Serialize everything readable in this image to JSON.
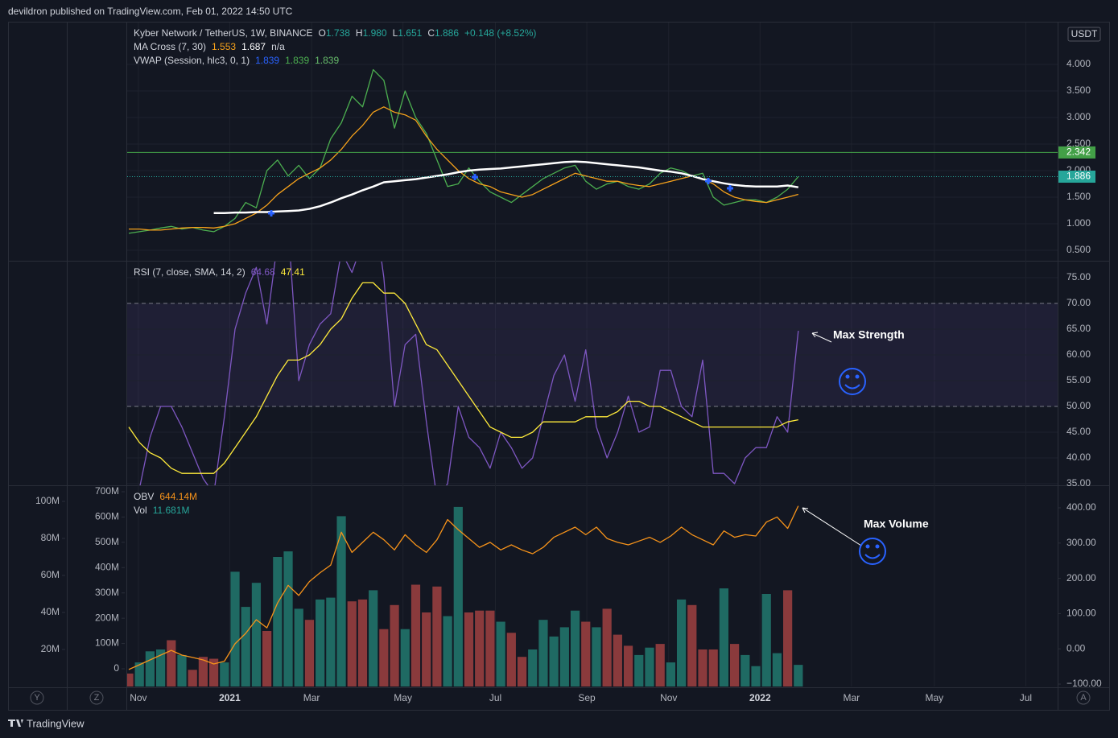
{
  "header": {
    "publisher": "devildron published on TradingView.com, Feb 01, 2022 14:50 UTC"
  },
  "footer": {
    "brand": "TradingView"
  },
  "buttons": [
    "Y",
    "Z",
    "A"
  ],
  "chart_data": [
    {
      "type": "line",
      "currency": "USDT",
      "legend": [
        [
          {
            "text": "Kyber Network / TetherUS, 1W, BINANCE",
            "color": "#d1d4dc"
          },
          {
            "text": "O",
            "color": "#d1d4dc"
          },
          {
            "text": "1.738",
            "color": "#26a69a"
          },
          {
            "text": "H",
            "color": "#d1d4dc"
          },
          {
            "text": "1.980",
            "color": "#26a69a"
          },
          {
            "text": "L",
            "color": "#d1d4dc"
          },
          {
            "text": "1.651",
            "color": "#26a69a"
          },
          {
            "text": "C",
            "color": "#d1d4dc"
          },
          {
            "text": "1.886",
            "color": "#26a69a"
          },
          {
            "text": "+0.148 (+8.52%)",
            "color": "#26a69a"
          }
        ],
        [
          {
            "text": "MA Cross (7, 30)",
            "color": "#d1d4dc"
          },
          {
            "text": "1.553",
            "color": "#f7a21b"
          },
          {
            "text": "1.687",
            "color": "#ffffff"
          },
          {
            "text": "n/a",
            "color": "#d1d4dc"
          }
        ],
        [
          {
            "text": "VWAP (Session, hlc3, 0, 1)",
            "color": "#d1d4dc"
          },
          {
            "text": "1.839",
            "color": "#2962ff"
          },
          {
            "text": "1.839",
            "color": "#4caf50"
          },
          {
            "text": "1.839",
            "color": "#66bb6a"
          }
        ]
      ],
      "ylim": [
        0.318,
        4.788
      ],
      "yticks": [
        {
          "value": 0.5,
          "label": "0.500"
        },
        {
          "value": 1,
          "label": "1.000"
        },
        {
          "value": 1.5,
          "label": "1.500"
        },
        {
          "value": 2,
          "label": "2.000"
        },
        {
          "value": 2.5,
          "label": "2.500"
        },
        {
          "value": 3,
          "label": "3.000"
        },
        {
          "value": 3.5,
          "label": "3.500"
        },
        {
          "value": 4,
          "label": "4.000"
        }
      ],
      "grid": true,
      "price_lines": [
        {
          "value": 2.342,
          "color": "#43a047",
          "style": "solid"
        },
        {
          "value": 1.886,
          "color": "#26a69a",
          "style": "dotted"
        }
      ],
      "series": [
        {
          "color": "#4caf50",
          "values": [
            0.82,
            0.85,
            0.88,
            0.92,
            0.95,
            0.9,
            0.93,
            0.88,
            0.85,
            0.95,
            1.1,
            1.4,
            1.3,
            2.0,
            2.2,
            1.9,
            2.1,
            1.85,
            2.05,
            2.6,
            2.9,
            3.4,
            3.2,
            3.9,
            3.7,
            2.8,
            3.5,
            3.0,
            2.7,
            2.2,
            1.7,
            1.75,
            2.05,
            1.8,
            1.6,
            1.5,
            1.4,
            1.55,
            1.7,
            1.85,
            1.95,
            2.05,
            2.1,
            1.8,
            1.65,
            1.75,
            1.8,
            1.7,
            1.65,
            1.75,
            1.95,
            2.05,
            2.0,
            1.9,
            1.95,
            1.5,
            1.35,
            1.4,
            1.45,
            1.45,
            1.4,
            1.5,
            1.65,
            1.886
          ]
        },
        {
          "color": "#f7a21b",
          "values": [
            0.9,
            0.9,
            0.88,
            0.88,
            0.9,
            0.92,
            0.93,
            0.93,
            0.92,
            0.95,
            1.0,
            1.1,
            1.2,
            1.35,
            1.55,
            1.7,
            1.85,
            1.95,
            2.05,
            2.2,
            2.4,
            2.65,
            2.85,
            3.1,
            3.2,
            3.1,
            3.05,
            2.95,
            2.65,
            2.4,
            2.2,
            2.0,
            1.85,
            1.75,
            1.7,
            1.6,
            1.55,
            1.5,
            1.55,
            1.65,
            1.75,
            1.85,
            1.95,
            1.9,
            1.85,
            1.8,
            1.8,
            1.75,
            1.72,
            1.7,
            1.75,
            1.8,
            1.85,
            1.9,
            1.85,
            1.75,
            1.6,
            1.5,
            1.45,
            1.42,
            1.4,
            1.45,
            1.5,
            1.553
          ]
        },
        {
          "color": "#ffffff",
          "width": 2.5,
          "values": [
            null,
            null,
            null,
            null,
            null,
            null,
            null,
            null,
            1.2,
            1.2,
            1.21,
            1.21,
            1.22,
            1.22,
            1.23,
            1.24,
            1.25,
            1.28,
            1.33,
            1.4,
            1.48,
            1.55,
            1.63,
            1.7,
            1.78,
            1.8,
            1.82,
            1.84,
            1.87,
            1.9,
            1.93,
            1.97,
            2.0,
            2.02,
            2.03,
            2.04,
            2.06,
            2.08,
            2.1,
            2.12,
            2.14,
            2.16,
            2.17,
            2.16,
            2.14,
            2.12,
            2.1,
            2.08,
            2.06,
            2.03,
            2.0,
            1.98,
            1.95,
            1.9,
            1.84,
            1.8,
            1.76,
            1.73,
            1.71,
            1.7,
            1.7,
            1.7,
            1.72,
            1.687
          ]
        }
      ]
    },
    {
      "type": "line",
      "legend": [
        [
          {
            "text": "RSI (7, close, SMA, 14, 2)",
            "color": "#d1d4dc"
          },
          {
            "text": "64.68",
            "color": "#7e57c2"
          },
          {
            "text": "47.41",
            "color": "#ffeb3b"
          }
        ]
      ],
      "ylim": [
        34.69,
        78.13
      ],
      "yticks": [
        {
          "value": 35,
          "label": "35.00"
        },
        {
          "value": 40,
          "label": "40.00"
        },
        {
          "value": 45,
          "label": "45.00"
        },
        {
          "value": 50,
          "label": "50.00"
        },
        {
          "value": 55,
          "label": "55.00"
        },
        {
          "value": 60,
          "label": "60.00"
        },
        {
          "value": 65,
          "label": "65.00"
        },
        {
          "value": 70,
          "label": "70.00"
        },
        {
          "value": 75,
          "label": "75.00"
        }
      ],
      "grid": true,
      "band": [
        50,
        70
      ],
      "levels": [
        70,
        50
      ],
      "annotations": [
        "Max Strength"
      ],
      "series": [
        {
          "color": "#7e57c2",
          "values": [
            28,
            34,
            44,
            50,
            50,
            46,
            41,
            36,
            33,
            48,
            65,
            72,
            77,
            66,
            82,
            85,
            55,
            62,
            66,
            68,
            80,
            76,
            82,
            90,
            75,
            50,
            62,
            64,
            47,
            32,
            35,
            50,
            44,
            42,
            38,
            45,
            42,
            38,
            40,
            48,
            56,
            60,
            51,
            61,
            46,
            40,
            45,
            52,
            45,
            46,
            57,
            57,
            50,
            48,
            59,
            37,
            37,
            35,
            40,
            42,
            42,
            48,
            45,
            64.68
          ]
        },
        {
          "color": "#ffeb3b",
          "values": [
            46,
            43,
            41,
            40,
            38,
            37,
            37,
            37,
            37,
            39,
            42,
            45,
            48,
            52,
            56,
            59,
            59,
            60,
            62,
            65,
            67,
            71,
            74,
            74,
            72,
            72,
            70,
            66,
            62,
            61,
            58,
            55,
            52,
            49,
            46,
            45,
            44,
            44,
            45,
            47,
            47,
            47,
            47,
            48,
            48,
            48,
            49,
            51,
            51,
            50,
            50,
            49,
            48,
            47,
            46,
            46,
            46,
            46,
            46,
            46,
            46,
            46,
            47,
            47.41
          ]
        }
      ]
    },
    {
      "type": "bar",
      "legend": [
        [
          {
            "text": "OBV",
            "color": "#d1d4dc"
          },
          {
            "text": "644.14M",
            "color": "#f7931a"
          }
        ],
        [
          {
            "text": "Vol",
            "color": "#d1d4dc"
          },
          {
            "text": "11.681M",
            "color": "#26a69a"
          }
        ]
      ],
      "annotations": [
        "Max Volume"
      ],
      "ylim": [
        -106.8,
        461.6
      ],
      "yticks": [
        {
          "value": -100,
          "label": "−100.00"
        },
        {
          "value": 0,
          "label": "0.00"
        },
        {
          "value": 100,
          "label": "100.00"
        },
        {
          "value": 200,
          "label": "200.00"
        },
        {
          "value": 300,
          "label": "300.00"
        },
        {
          "value": 400,
          "label": "400.00"
        }
      ],
      "y2lim": [
        0,
        108.26
      ],
      "y2ticks": [
        {
          "value": 20,
          "label": "20M"
        },
        {
          "value": 40,
          "label": "40M"
        },
        {
          "value": 60,
          "label": "60M"
        },
        {
          "value": 80,
          "label": "80M"
        },
        {
          "value": 100,
          "label": "100M"
        }
      ],
      "y3lim": [
        -70,
        722.27
      ],
      "y3ticks": [
        0,
        {
          "value": 100,
          "label": "100M"
        },
        {
          "value": 200,
          "label": "200M"
        },
        {
          "value": 300,
          "label": "300M"
        },
        {
          "value": 400,
          "label": "400M"
        },
        {
          "value": 500,
          "label": "500M"
        },
        {
          "value": 600,
          "label": "600M"
        },
        {
          "value": 700,
          "label": "700M"
        }
      ],
      "grid": true,
      "xlim": [
        -0.15,
        87.4
      ],
      "xticks": [
        {
          "value": 0.9,
          "label": "Nov"
        },
        {
          "value": 9.5,
          "label": "2021"
        },
        {
          "value": 17.2,
          "label": "Mar"
        },
        {
          "value": 25.8,
          "label": "May"
        },
        {
          "value": 34.5,
          "label": "Jul"
        },
        {
          "value": 43.1,
          "label": "Sep"
        },
        {
          "value": 50.8,
          "label": "Nov"
        },
        {
          "value": 59.4,
          "label": "2022"
        },
        {
          "value": 68,
          "label": "Mar"
        },
        {
          "value": 75.8,
          "label": "May"
        },
        {
          "value": 84.4,
          "label": "Jul"
        }
      ],
      "series": [
        {
          "kind": "bar",
          "axis": "y2",
          "up_color": "#1f6a63",
          "down_color": "#8a3a3c",
          "values": [
            7,
            13,
            19,
            20,
            25,
            17,
            9,
            16,
            15,
            13,
            62,
            43,
            56,
            30,
            70,
            73,
            42,
            36,
            47,
            48,
            92,
            46,
            47,
            52,
            31,
            44,
            31,
            55,
            40,
            54,
            38,
            97,
            40,
            41,
            41,
            35,
            29,
            16,
            20,
            36,
            27,
            32,
            41,
            35,
            32,
            42,
            28,
            22,
            17,
            21,
            23,
            13,
            47,
            44,
            20,
            20,
            53,
            23,
            17,
            11,
            50,
            18,
            52,
            11.681
          ],
          "directions": [
            "down",
            "up",
            "up",
            "up",
            "down",
            "up",
            "down",
            "down",
            "down",
            "up",
            "up",
            "up",
            "up",
            "down",
            "up",
            "up",
            "up",
            "down",
            "up",
            "up",
            "up",
            "down",
            "down",
            "up",
            "down",
            "down",
            "up",
            "down",
            "down",
            "down",
            "up",
            "up",
            "down",
            "down",
            "down",
            "up",
            "down",
            "down",
            "up",
            "up",
            "up",
            "up",
            "up",
            "down",
            "up",
            "down",
            "down",
            "down",
            "up",
            "up",
            "down",
            "up",
            "up",
            "down",
            "down",
            "down",
            "up",
            "down",
            "up",
            "up",
            "up",
            "up",
            "down",
            "up"
          ]
        },
        {
          "kind": "line",
          "axis": "y3",
          "color": "#f7931a",
          "values": [
            -3,
            16,
            35,
            54,
            73,
            54,
            45,
            35,
            19,
            30,
            99,
            140,
            194,
            162,
            260,
            330,
            290,
            345,
            380,
            410,
            540,
            460,
            500,
            540,
            510,
            470,
            530,
            490,
            460,
            510,
            590,
            550,
            515,
            480,
            500,
            470,
            490,
            470,
            455,
            480,
            520,
            540,
            560,
            530,
            560,
            515,
            500,
            490,
            505,
            520,
            500,
            525,
            560,
            530,
            510,
            490,
            545,
            520,
            530,
            525,
            580,
            600,
            555,
            644.14
          ]
        }
      ]
    }
  ]
}
